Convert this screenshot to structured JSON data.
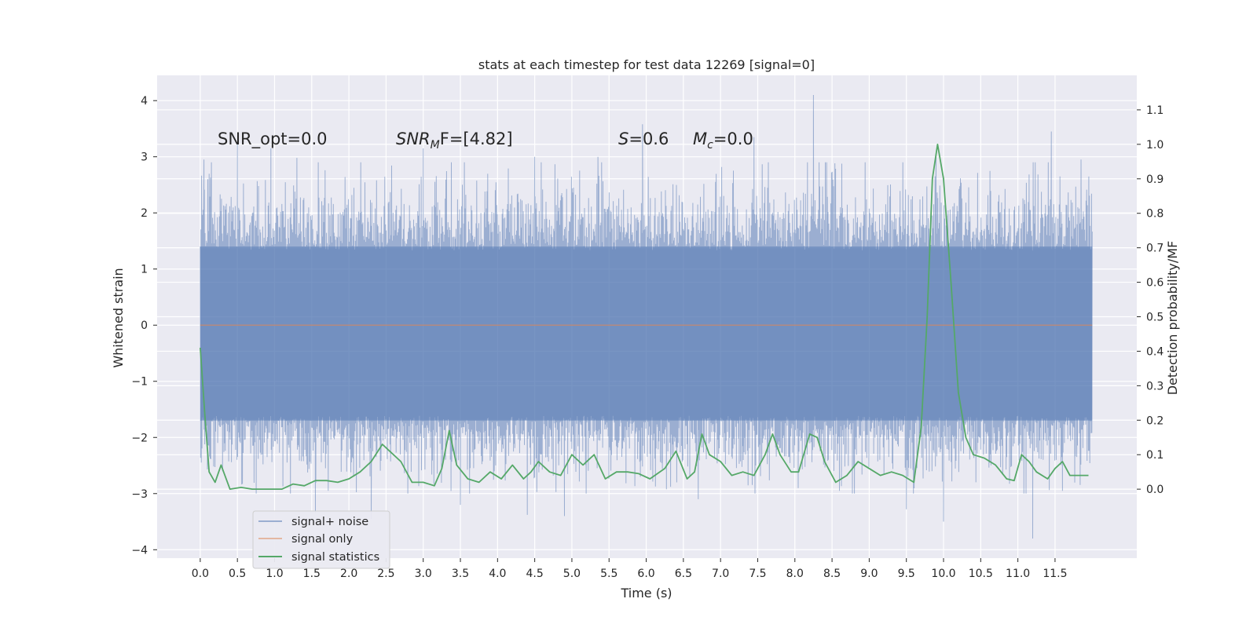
{
  "chart_data": {
    "type": "line",
    "title": "stats at each timestep for test data 12269 [signal=0]",
    "xlabel": "Time (s)",
    "ylabel_left": "Whitened strain",
    "ylabel_right": "Detection probability/MF",
    "xlim": [
      -0.58,
      12.6
    ],
    "ylim_left": [
      -4.15,
      4.45
    ],
    "ylim_right": [
      -0.2,
      1.2
    ],
    "x_ticks": [
      "0.0",
      "0.5",
      "1.0",
      "1.5",
      "2.0",
      "2.5",
      "3.0",
      "3.5",
      "4.0",
      "4.5",
      "5.0",
      "5.5",
      "6.0",
      "6.5",
      "7.0",
      "7.5",
      "8.0",
      "8.5",
      "9.0",
      "9.5",
      "10.0",
      "10.5",
      "11.0",
      "11.5"
    ],
    "y_ticks_left": [
      "4",
      "3",
      "2",
      "1",
      "0",
      "−1",
      "−2",
      "−3",
      "−4"
    ],
    "y_ticks_right": [
      "1.1",
      "1.0",
      "0.9",
      "0.8",
      "0.7",
      "0.6",
      "0.5",
      "0.4",
      "0.3",
      "0.2",
      "0.1",
      "0.0"
    ],
    "grid": true,
    "legend_placement": "lower-left",
    "annotations": {
      "snr_opt": "SNR_opt=0.0",
      "snr_mf_main": "SNR",
      "snr_mf_sub": "M",
      "snr_mf_rest": "F=[4.82]",
      "s_main": "S",
      "s_rest": "=0.6",
      "mc_main": "M",
      "mc_sub": "c",
      "mc_rest": "=0.0"
    },
    "series": [
      {
        "name": "signal+ noise",
        "color": "#4c72b0",
        "axis": "left",
        "x_range": [
          0.0,
          12.0
        ],
        "envelope_typical": [
          -1.7,
          1.4
        ],
        "extremes": [
          [
            0.0,
            1.4
          ],
          [
            0.05,
            2.95
          ],
          [
            0.15,
            2.9
          ],
          [
            0.5,
            3.25
          ],
          [
            0.95,
            3.15
          ],
          [
            1.3,
            2.98
          ],
          [
            3.0,
            3.15
          ],
          [
            4.5,
            3.0
          ],
          [
            5.35,
            3.0
          ],
          [
            5.95,
            3.58
          ],
          [
            7.45,
            3.35
          ],
          [
            8.25,
            4.1
          ],
          [
            9.9,
            3.0
          ],
          [
            11.45,
            3.45
          ],
          [
            11.85,
            2.95
          ],
          [
            1.55,
            -3.35
          ],
          [
            2.3,
            -3.45
          ],
          [
            3.5,
            -3.2
          ],
          [
            4.4,
            -3.38
          ],
          [
            4.9,
            -3.4
          ],
          [
            6.7,
            -3.1
          ],
          [
            9.5,
            -3.28
          ],
          [
            10.0,
            -3.5
          ],
          [
            11.2,
            -3.8
          ],
          [
            0.3,
            -2.6
          ],
          [
            8.6,
            -2.95
          ],
          [
            11.6,
            -2.95
          ]
        ]
      },
      {
        "name": "signal only",
        "color": "#dd8452",
        "axis": "left",
        "x": [
          0.0,
          12.0
        ],
        "values": [
          0.0,
          0.0
        ]
      },
      {
        "name": "signal statistics",
        "color": "#55a868",
        "axis": "right",
        "x": [
          0.0,
          0.06,
          0.12,
          0.2,
          0.28,
          0.4,
          0.55,
          0.7,
          0.85,
          1.0,
          1.1,
          1.25,
          1.4,
          1.55,
          1.7,
          1.85,
          2.0,
          2.15,
          2.3,
          2.45,
          2.55,
          2.7,
          2.85,
          3.0,
          3.15,
          3.25,
          3.35,
          3.45,
          3.6,
          3.75,
          3.9,
          4.05,
          4.2,
          4.35,
          4.45,
          4.55,
          4.7,
          4.85,
          5.0,
          5.15,
          5.3,
          5.45,
          5.6,
          5.75,
          5.9,
          6.05,
          6.25,
          6.4,
          6.55,
          6.65,
          6.75,
          6.85,
          7.0,
          7.15,
          7.3,
          7.45,
          7.6,
          7.7,
          7.8,
          7.95,
          8.05,
          8.2,
          8.3,
          8.4,
          8.55,
          8.7,
          8.85,
          9.0,
          9.15,
          9.3,
          9.45,
          9.6,
          9.7,
          9.78,
          9.85,
          9.92,
          10.0,
          10.1,
          10.2,
          10.3,
          10.4,
          10.55,
          10.7,
          10.85,
          10.95,
          11.05,
          11.15,
          11.25,
          11.4,
          11.5,
          11.6,
          11.7,
          11.85,
          11.95
        ],
        "values": [
          0.41,
          0.22,
          0.05,
          0.02,
          0.07,
          0.0,
          0.005,
          0.0,
          0.0,
          0.0,
          0.0,
          0.015,
          0.01,
          0.025,
          0.025,
          0.02,
          0.03,
          0.05,
          0.08,
          0.13,
          0.11,
          0.08,
          0.02,
          0.02,
          0.01,
          0.06,
          0.17,
          0.07,
          0.03,
          0.02,
          0.05,
          0.03,
          0.07,
          0.03,
          0.05,
          0.08,
          0.05,
          0.04,
          0.1,
          0.07,
          0.1,
          0.03,
          0.05,
          0.05,
          0.045,
          0.03,
          0.06,
          0.11,
          0.03,
          0.05,
          0.16,
          0.1,
          0.08,
          0.04,
          0.05,
          0.04,
          0.1,
          0.16,
          0.1,
          0.05,
          0.05,
          0.16,
          0.15,
          0.08,
          0.02,
          0.04,
          0.08,
          0.06,
          0.04,
          0.05,
          0.04,
          0.02,
          0.18,
          0.5,
          0.9,
          1.0,
          0.9,
          0.6,
          0.28,
          0.15,
          0.1,
          0.09,
          0.07,
          0.03,
          0.025,
          0.1,
          0.08,
          0.05,
          0.03,
          0.06,
          0.08,
          0.04,
          0.04,
          0.04
        ]
      }
    ]
  }
}
